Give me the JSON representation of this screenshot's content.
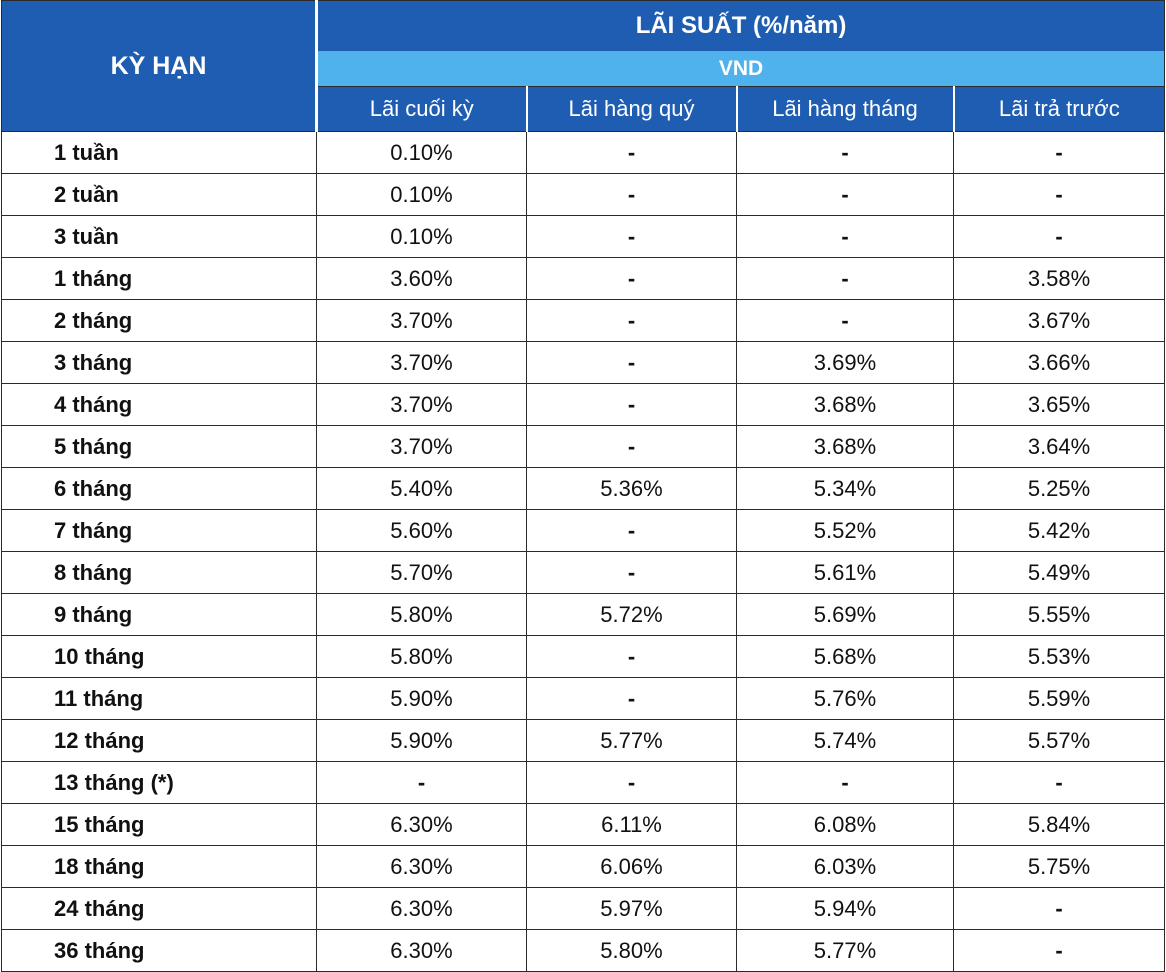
{
  "header": {
    "term_label": "KỲ HẠN",
    "rate_label": "LÃI SUẤT (%/năm)",
    "currency_label": "VND",
    "columns": [
      "Lãi cuối kỳ",
      "Lãi hàng quý",
      "Lãi hàng tháng",
      "Lãi trả trước"
    ]
  },
  "rows": [
    {
      "term": "1 tuần",
      "values": [
        "0.10%",
        "-",
        "-",
        "-"
      ]
    },
    {
      "term": "2 tuần",
      "values": [
        "0.10%",
        "-",
        "-",
        "-"
      ]
    },
    {
      "term": "3 tuần",
      "values": [
        "0.10%",
        "-",
        "-",
        "-"
      ]
    },
    {
      "term": "1 tháng",
      "values": [
        "3.60%",
        "-",
        "-",
        "3.58%"
      ]
    },
    {
      "term": "2 tháng",
      "values": [
        "3.70%",
        "-",
        "-",
        "3.67%"
      ]
    },
    {
      "term": "3 tháng",
      "values": [
        "3.70%",
        "-",
        "3.69%",
        "3.66%"
      ]
    },
    {
      "term": "4 tháng",
      "values": [
        "3.70%",
        "-",
        "3.68%",
        "3.65%"
      ]
    },
    {
      "term": "5 tháng",
      "values": [
        "3.70%",
        "-",
        "3.68%",
        "3.64%"
      ]
    },
    {
      "term": "6 tháng",
      "values": [
        "5.40%",
        "5.36%",
        "5.34%",
        "5.25%"
      ]
    },
    {
      "term": "7 tháng",
      "values": [
        "5.60%",
        "-",
        "5.52%",
        "5.42%"
      ]
    },
    {
      "term": "8 tháng",
      "values": [
        "5.70%",
        "-",
        "5.61%",
        "5.49%"
      ]
    },
    {
      "term": "9 tháng",
      "values": [
        "5.80%",
        "5.72%",
        "5.69%",
        "5.55%"
      ]
    },
    {
      "term": "10 tháng",
      "values": [
        "5.80%",
        "-",
        "5.68%",
        "5.53%"
      ]
    },
    {
      "term": "11 tháng",
      "values": [
        "5.90%",
        "-",
        "5.76%",
        "5.59%"
      ]
    },
    {
      "term": "12 tháng",
      "values": [
        "5.90%",
        "5.77%",
        "5.74%",
        "5.57%"
      ]
    },
    {
      "term": "13 tháng (*)",
      "values": [
        "-",
        "-",
        "-",
        "-"
      ]
    },
    {
      "term": "15 tháng",
      "values": [
        "6.30%",
        "6.11%",
        "6.08%",
        "5.84%"
      ]
    },
    {
      "term": "18 tháng",
      "values": [
        "6.30%",
        "6.06%",
        "6.03%",
        "5.75%"
      ]
    },
    {
      "term": "24 tháng",
      "values": [
        "6.30%",
        "5.97%",
        "5.94%",
        "-"
      ]
    },
    {
      "term": "36 tháng",
      "values": [
        "6.30%",
        "5.80%",
        "5.77%",
        "-"
      ]
    }
  ]
}
